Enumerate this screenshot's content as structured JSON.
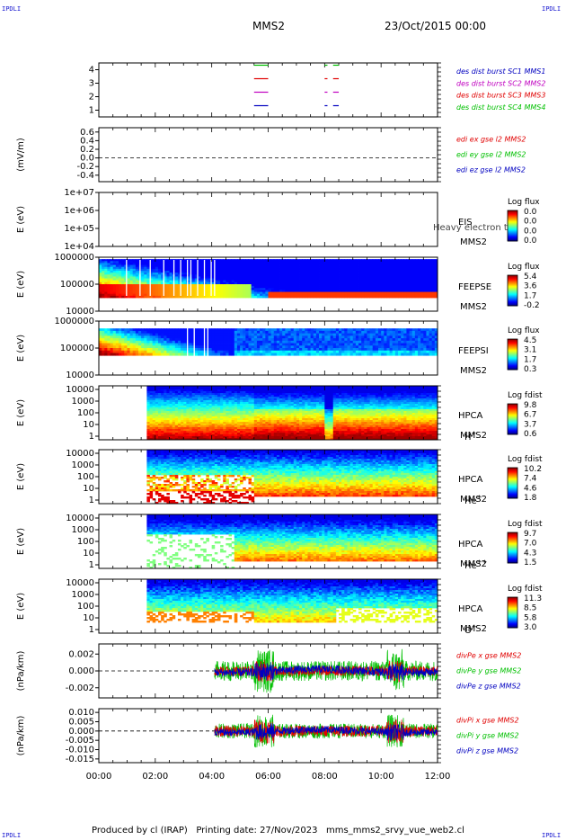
{
  "header": {
    "corner_label": "IPDLI",
    "spacecraft": "MMS2",
    "datetime": "23/Oct/2015 00:00"
  },
  "footer": {
    "text": "Produced by cl (IRAP)   Printing date: 27/Nov/2023   mms_mms2_srvy_vue_web2.cl"
  },
  "colors": {
    "red": "#e00000",
    "green": "#00c000",
    "blue": "#0000c0",
    "magenta": "#c000c0"
  },
  "x_axis": {
    "range_hours": [
      0,
      12
    ],
    "ticks": [
      "00:00",
      "02:00",
      "04:00",
      "06:00",
      "08:00",
      "10:00",
      "12:00"
    ]
  },
  "chart_data": [
    {
      "type": "line",
      "panel": "burst",
      "yticks": [
        "4",
        "3",
        "2",
        "1"
      ],
      "ylim": [
        0.5,
        4.5
      ],
      "legend": [
        {
          "label": "des dist burst SC1 MMS1",
          "color": "#0000c0"
        },
        {
          "label": "des dist burst SC2 MMS2",
          "color": "#c000c0"
        },
        {
          "label": "des dist burst SC3 MMS3",
          "color": "#e00000"
        },
        {
          "label": "des dist burst SC4 MMS4",
          "color": "#00c000"
        }
      ],
      "series": [
        {
          "level": 4,
          "color": "#00c000",
          "segments": [
            [
              5.5,
              6.0
            ],
            [
              8.0,
              8.1
            ],
            [
              8.3,
              8.5
            ]
          ]
        },
        {
          "level": 3,
          "color": "#e00000",
          "segments": [
            [
              5.5,
              6.0
            ],
            [
              8.0,
              8.1
            ],
            [
              8.3,
              8.5
            ]
          ]
        },
        {
          "level": 2,
          "color": "#c000c0",
          "segments": [
            [
              5.5,
              6.0
            ],
            [
              8.0,
              8.1
            ],
            [
              8.3,
              8.5
            ]
          ]
        },
        {
          "level": 1,
          "color": "#0000c0",
          "segments": [
            [
              5.5,
              6.0
            ],
            [
              8.0,
              8.1
            ],
            [
              8.3,
              8.5
            ]
          ]
        }
      ]
    },
    {
      "type": "line",
      "panel": "edi",
      "ylabel": "(mV/m)",
      "ylim": [
        -0.55,
        0.7
      ],
      "yticks": [
        "0.6",
        "0.4",
        "0.2",
        "0.0",
        "-0.2",
        "-0.4"
      ],
      "ytick_values": [
        0.6,
        0.4,
        0.2,
        0.0,
        -0.2,
        -0.4
      ],
      "legend": [
        {
          "label": "edi ex gse l2 MMS2",
          "color": "#e00000"
        },
        {
          "label": "edi ey gse l2 MMS2",
          "color": "#00c000"
        },
        {
          "label": "edi ez gse l2 MMS2",
          "color": "#0000c0"
        }
      ]
    },
    {
      "type": "heatmap",
      "panel": "eis",
      "ylabel": "E (eV)",
      "yticks": [
        "1e+07",
        "1e+06",
        "1e+05",
        "1e+04"
      ],
      "instrument": [
        "EIS",
        "MMS2"
      ],
      "overlay_text": "Heavy electron to",
      "colorbar": {
        "title": "Log flux",
        "ticks": [
          "0.0",
          "0.0",
          "0.0",
          "0.0"
        ]
      }
    },
    {
      "type": "heatmap",
      "panel": "feeps_e",
      "ylabel": "E (eV)",
      "yticks": [
        "1000000",
        "100000",
        "10000"
      ],
      "instrument": [
        "FEEPSE",
        "MMS2"
      ],
      "colorbar": {
        "title": "Log flux",
        "ticks": [
          "5.4",
          "3.6",
          "1.7",
          "-0.2"
        ]
      }
    },
    {
      "type": "heatmap",
      "panel": "feeps_i",
      "ylabel": "E (eV)",
      "yticks": [
        "1000000",
        "100000",
        "10000"
      ],
      "instrument": [
        "FEEPSI",
        "MMS2"
      ],
      "colorbar": {
        "title": "Log flux",
        "ticks": [
          "4.5",
          "3.1",
          "1.7",
          "0.3"
        ]
      }
    },
    {
      "type": "heatmap",
      "panel": "hpca_h",
      "ylabel": "E (eV)",
      "yticks": [
        "10000",
        "1000",
        "100",
        "10",
        "1"
      ],
      "instrument": [
        "HPCA",
        "MMS2",
        "H",
        "+"
      ],
      "colorbar": {
        "title": "Log fdist",
        "ticks": [
          "9.8",
          "6.7",
          "3.7",
          "0.6"
        ]
      }
    },
    {
      "type": "heatmap",
      "panel": "hpca_he1",
      "ylabel": "E (eV)",
      "yticks": [
        "10000",
        "1000",
        "100",
        "10",
        "1"
      ],
      "instrument": [
        "HPCA",
        "MMS2",
        "He",
        "+"
      ],
      "colorbar": {
        "title": "Log fdist",
        "ticks": [
          "10.2",
          "7.4",
          "4.6",
          "1.8"
        ]
      }
    },
    {
      "type": "heatmap",
      "panel": "hpca_he2",
      "ylabel": "E (eV)",
      "yticks": [
        "10000",
        "1000",
        "100",
        "10",
        "1"
      ],
      "instrument": [
        "HPCA",
        "MMS2",
        "He",
        "++"
      ],
      "colorbar": {
        "title": "Log fdist",
        "ticks": [
          "9.7",
          "7.0",
          "4.3",
          "1.5"
        ]
      }
    },
    {
      "type": "heatmap",
      "panel": "hpca_o",
      "ylabel": "E (eV)",
      "yticks": [
        "10000",
        "1000",
        "100",
        "10",
        "1"
      ],
      "instrument": [
        "HPCA",
        "MMS2",
        "O",
        "+"
      ],
      "colorbar": {
        "title": "Log fdist",
        "ticks": [
          "11.3",
          "8.5",
          "5.8",
          "3.0"
        ]
      }
    },
    {
      "type": "line",
      "panel": "divpe",
      "ylabel": "(nPa/km)",
      "ylim": [
        -0.0032,
        0.0032
      ],
      "yticks": [
        "0.002",
        "0.000",
        "-0.002"
      ],
      "ytick_values": [
        0.002,
        0.0,
        -0.002
      ],
      "legend": [
        {
          "label": "divPe x gse MMS2",
          "color": "#e00000"
        },
        {
          "label": "divPe y gse MMS2",
          "color": "#00c000"
        },
        {
          "label": "divPe z gse MMS2",
          "color": "#0000c0"
        }
      ],
      "data_start_hour": 4.1,
      "amplitude": {
        "x": 0.0006,
        "y": 0.0012,
        "z": 0.0005
      }
    },
    {
      "type": "line",
      "panel": "divpi",
      "ylabel": "(nPa/km)",
      "ylim": [
        -0.017,
        0.012
      ],
      "yticks": [
        "0.010",
        "0.005",
        "0.000",
        "-0.005",
        "-0.010",
        "-0.015"
      ],
      "ytick_values": [
        0.01,
        0.005,
        0.0,
        -0.005,
        -0.01,
        -0.015
      ],
      "legend": [
        {
          "label": "divPi x gse MMS2",
          "color": "#e00000"
        },
        {
          "label": "divPi y gse MMS2",
          "color": "#00c000"
        },
        {
          "label": "divPi z gse MMS2",
          "color": "#0000c0"
        }
      ],
      "data_start_hour": 4.1,
      "amplitude": {
        "x": 0.003,
        "y": 0.004,
        "z": 0.002
      }
    }
  ]
}
